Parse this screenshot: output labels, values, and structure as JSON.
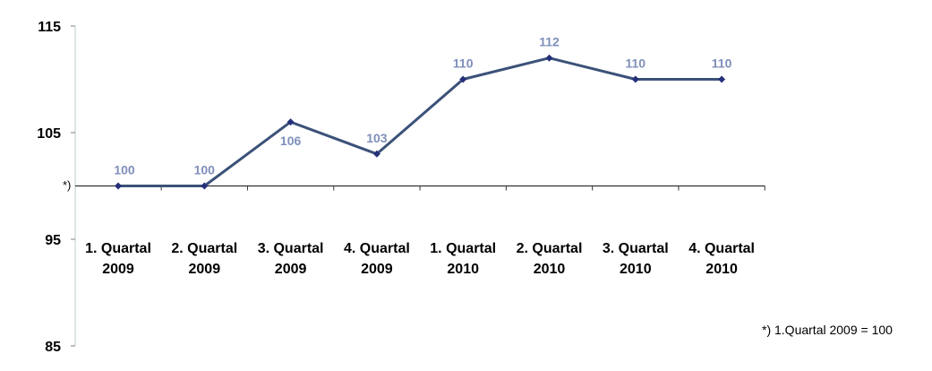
{
  "chart_data": {
    "type": "line",
    "categories": [
      [
        "1. Quartal",
        "2009"
      ],
      [
        "2. Quartal",
        "2009"
      ],
      [
        "3. Quartal",
        "2009"
      ],
      [
        "4. Quartal",
        "2009"
      ],
      [
        "1. Quartal",
        "2010"
      ],
      [
        "2. Quartal",
        "2010"
      ],
      [
        "3. Quartal",
        "2010"
      ],
      [
        "4. Quartal",
        "2010"
      ]
    ],
    "series": [
      {
        "values": [
          100,
          100,
          106,
          103,
          110,
          112,
          110,
          110
        ]
      }
    ],
    "data_labels": [
      "100",
      "100",
      "106",
      "103",
      "110",
      "112",
      "110",
      "110"
    ],
    "ylim": [
      85,
      115
    ],
    "yticks": [
      "85",
      "95",
      "105",
      "115"
    ],
    "x_axis_crosses_at": 100,
    "x_axis_marker": "*)",
    "footnote": "*) 1.Quartal 2009 = 100",
    "grid": false,
    "colors": {
      "line": "#3b5178",
      "marker": "#25307a",
      "data_label": "#7f8fba",
      "axis": "#808080",
      "y_axis_line": "#b9cfc9"
    }
  }
}
